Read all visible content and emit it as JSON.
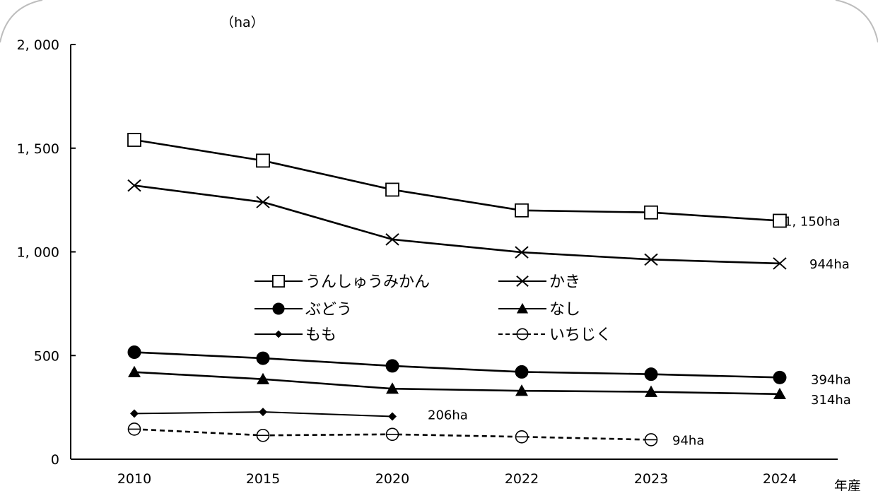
{
  "chart_data": {
    "type": "line",
    "x": [
      "2010",
      "2015",
      "2020",
      "2022",
      "2023",
      "2024"
    ],
    "ylim": [
      0,
      2000
    ],
    "yticks": [
      0,
      500,
      1000,
      1500,
      2000
    ],
    "ytick_labels": [
      "0",
      "500",
      "1, 000",
      "1, 500",
      "2, 000"
    ],
    "ylabel": "（ha）",
    "xlabel": "年産",
    "grid": false,
    "legend_position": "center",
    "series": [
      {
        "name": "うんしゅうみかん",
        "marker": "open-square",
        "dash": "solid",
        "values": [
          1540,
          1440,
          1300,
          1200,
          1190,
          1150
        ],
        "end_label": "1, 150ha"
      },
      {
        "name": "かき",
        "marker": "x",
        "dash": "solid",
        "values": [
          1320,
          1240,
          1060,
          998,
          963,
          944
        ],
        "end_label": "944ha"
      },
      {
        "name": "ぶどう",
        "marker": "filled-circle",
        "dash": "solid",
        "values": [
          516,
          487,
          450,
          421,
          410,
          394
        ],
        "end_label": "394ha"
      },
      {
        "name": "なし",
        "marker": "filled-triangle",
        "dash": "solid",
        "values": [
          420,
          386,
          340,
          330,
          325,
          314
        ],
        "end_label": "314ha"
      },
      {
        "name": "もも",
        "marker": "filled-diamond",
        "dash": "solid",
        "values": [
          220,
          228,
          206,
          null,
          null,
          null
        ],
        "end_label": "206ha"
      },
      {
        "name": "いちじく",
        "marker": "circle-minus",
        "dash": "dashed",
        "values": [
          145,
          115,
          120,
          108,
          94,
          null
        ],
        "end_label": "94ha"
      }
    ]
  }
}
